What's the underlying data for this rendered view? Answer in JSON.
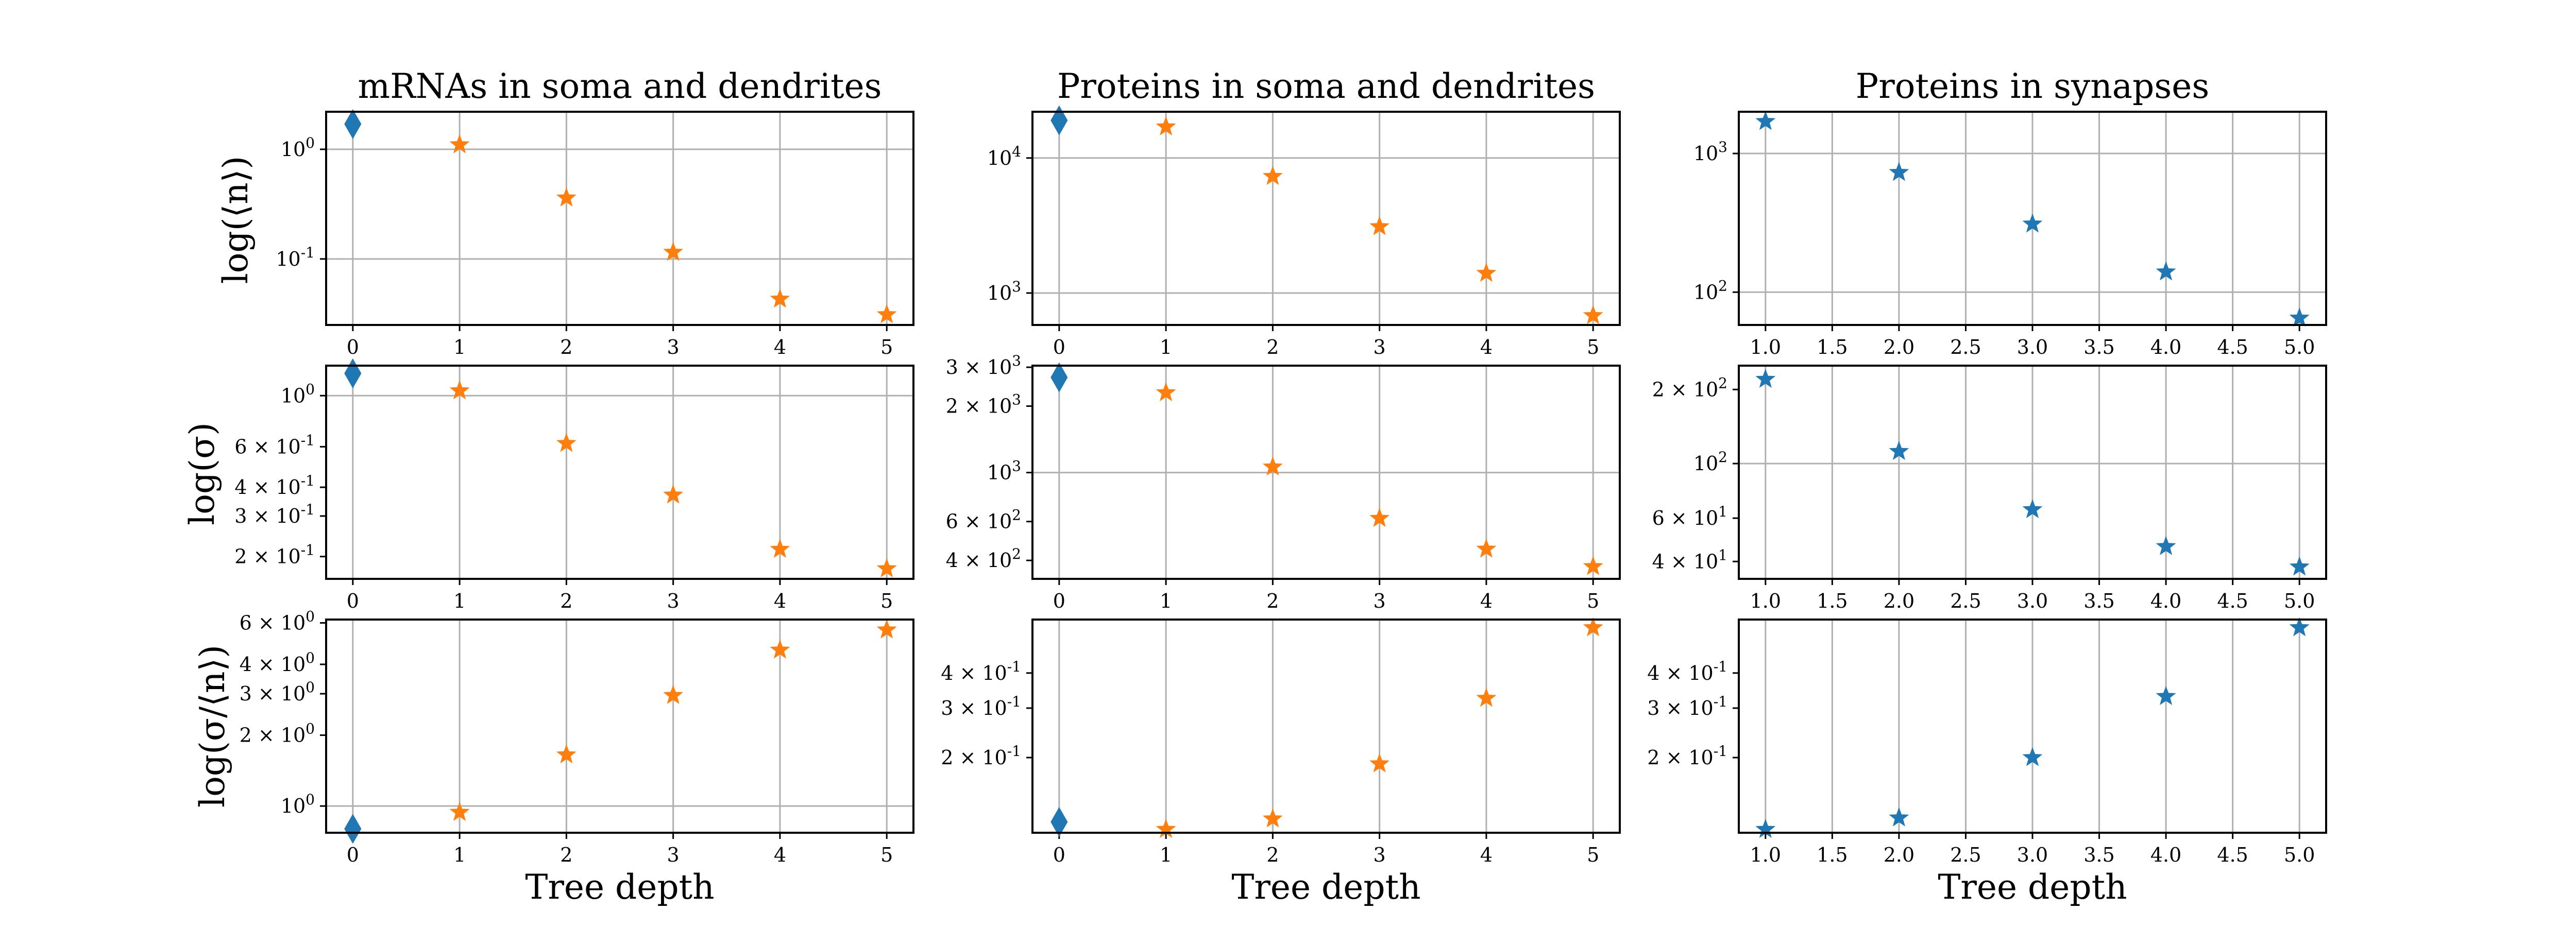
{
  "colors": {
    "blue": "#1f77b4",
    "orange": "#ff7f0e",
    "grid": "#b0b0b0"
  },
  "figure": {
    "column_titles": [
      "mRNAs in soma and dendrites",
      "Proteins in soma and dendrites",
      "Proteins in synapses"
    ],
    "row_labels": [
      "log(⟨n⟩)",
      "log(σ)",
      "log(σ/⟨n⟩)"
    ],
    "x_label": "Tree depth"
  },
  "chart_data": [
    {
      "type": "scatter",
      "row": 0,
      "col": 0,
      "yscale": "log",
      "grid": true,
      "xlim": [
        -0.25,
        5.25
      ],
      "ylim": [
        0.025,
        2.2
      ],
      "xticks": [
        0,
        1,
        2,
        3,
        4,
        5
      ],
      "xtick_labels": [
        "0",
        "1",
        "2",
        "3",
        "4",
        "5"
      ],
      "yticks": [
        1,
        0.1
      ],
      "ytick_labels": [
        "10^0",
        "10^-1"
      ],
      "points": [
        {
          "x": 0,
          "y": 1.7,
          "color": "blue",
          "marker": "diamond"
        },
        {
          "x": 1,
          "y": 1.1,
          "color": "orange",
          "marker": "star"
        },
        {
          "x": 2,
          "y": 0.36,
          "color": "orange",
          "marker": "star"
        },
        {
          "x": 3,
          "y": 0.115,
          "color": "orange",
          "marker": "star"
        },
        {
          "x": 4,
          "y": 0.043,
          "color": "orange",
          "marker": "star"
        },
        {
          "x": 5,
          "y": 0.031,
          "color": "orange",
          "marker": "star"
        }
      ]
    },
    {
      "type": "scatter",
      "row": 0,
      "col": 1,
      "yscale": "log",
      "grid": true,
      "xlim": [
        -0.25,
        5.25
      ],
      "ylim": [
        580,
        22000
      ],
      "xticks": [
        0,
        1,
        2,
        3,
        4,
        5
      ],
      "xtick_labels": [
        "0",
        "1",
        "2",
        "3",
        "4",
        "5"
      ],
      "yticks": [
        10000,
        1000
      ],
      "ytick_labels": [
        "10^4",
        "10^3"
      ],
      "points": [
        {
          "x": 0,
          "y": 19000,
          "color": "blue",
          "marker": "diamond"
        },
        {
          "x": 1,
          "y": 17000,
          "color": "orange",
          "marker": "star"
        },
        {
          "x": 2,
          "y": 7300,
          "color": "orange",
          "marker": "star"
        },
        {
          "x": 3,
          "y": 3100,
          "color": "orange",
          "marker": "star"
        },
        {
          "x": 4,
          "y": 1400,
          "color": "orange",
          "marker": "star"
        },
        {
          "x": 5,
          "y": 680,
          "color": "orange",
          "marker": "star"
        }
      ]
    },
    {
      "type": "scatter",
      "row": 0,
      "col": 2,
      "yscale": "log",
      "grid": true,
      "xlim": [
        0.8,
        5.2
      ],
      "ylim": [
        58,
        2000
      ],
      "xticks": [
        1.0,
        1.5,
        2.0,
        2.5,
        3.0,
        3.5,
        4.0,
        4.5,
        5.0
      ],
      "xtick_labels": [
        "1.0",
        "1.5",
        "2.0",
        "2.5",
        "3.0",
        "3.5",
        "4.0",
        "4.5",
        "5.0"
      ],
      "yticks": [
        1000,
        100
      ],
      "ytick_labels": [
        "10^3",
        "10^2"
      ],
      "points": [
        {
          "x": 1,
          "y": 1700,
          "color": "blue",
          "marker": "star"
        },
        {
          "x": 2,
          "y": 730,
          "color": "blue",
          "marker": "star"
        },
        {
          "x": 3,
          "y": 310,
          "color": "blue",
          "marker": "star"
        },
        {
          "x": 4,
          "y": 140,
          "color": "blue",
          "marker": "star"
        },
        {
          "x": 5,
          "y": 65,
          "color": "blue",
          "marker": "star"
        }
      ]
    },
    {
      "type": "scatter",
      "row": 1,
      "col": 0,
      "yscale": "log",
      "grid": true,
      "xlim": [
        -0.25,
        5.25
      ],
      "ylim": [
        0.16,
        1.35
      ],
      "xticks": [
        0,
        1,
        2,
        3,
        4,
        5
      ],
      "xtick_labels": [
        "0",
        "1",
        "2",
        "3",
        "4",
        "5"
      ],
      "yticks": [
        1,
        0.6,
        0.4,
        0.3,
        0.2
      ],
      "ytick_labels": [
        "10^0",
        "6 × 10^-1",
        "4 × 10^-1",
        "3 × 10^-1",
        "2 × 10^-1"
      ],
      "points": [
        {
          "x": 0,
          "y": 1.25,
          "color": "blue",
          "marker": "diamond"
        },
        {
          "x": 1,
          "y": 1.05,
          "color": "orange",
          "marker": "star"
        },
        {
          "x": 2,
          "y": 0.62,
          "color": "orange",
          "marker": "star"
        },
        {
          "x": 3,
          "y": 0.37,
          "color": "orange",
          "marker": "star"
        },
        {
          "x": 4,
          "y": 0.215,
          "color": "orange",
          "marker": "star"
        },
        {
          "x": 5,
          "y": 0.177,
          "color": "orange",
          "marker": "star"
        }
      ]
    },
    {
      "type": "scatter",
      "row": 1,
      "col": 1,
      "yscale": "log",
      "grid": true,
      "xlim": [
        -0.25,
        5.25
      ],
      "ylim": [
        330,
        3050
      ],
      "xticks": [
        0,
        1,
        2,
        3,
        4,
        5
      ],
      "xtick_labels": [
        "0",
        "1",
        "2",
        "3",
        "4",
        "5"
      ],
      "yticks": [
        3000,
        2000,
        1000,
        600,
        400
      ],
      "ytick_labels": [
        "3 × 10^3",
        "2 × 10^3",
        "10^3",
        "6 × 10^2",
        "4 × 10^2"
      ],
      "points": [
        {
          "x": 0,
          "y": 2700,
          "color": "blue",
          "marker": "diamond"
        },
        {
          "x": 1,
          "y": 2300,
          "color": "orange",
          "marker": "star"
        },
        {
          "x": 2,
          "y": 1060,
          "color": "orange",
          "marker": "star"
        },
        {
          "x": 3,
          "y": 620,
          "color": "orange",
          "marker": "star"
        },
        {
          "x": 4,
          "y": 450,
          "color": "orange",
          "marker": "star"
        },
        {
          "x": 5,
          "y": 375,
          "color": "orange",
          "marker": "star"
        }
      ]
    },
    {
      "type": "scatter",
      "row": 1,
      "col": 2,
      "yscale": "log",
      "grid": true,
      "xlim": [
        0.8,
        5.2
      ],
      "ylim": [
        34,
        250
      ],
      "xticks": [
        1.0,
        1.5,
        2.0,
        2.5,
        3.0,
        3.5,
        4.0,
        4.5,
        5.0
      ],
      "xtick_labels": [
        "1.0",
        "1.5",
        "2.0",
        "2.5",
        "3.0",
        "3.5",
        "4.0",
        "4.5",
        "5.0"
      ],
      "yticks": [
        200,
        100,
        60,
        40
      ],
      "ytick_labels": [
        "2 × 10^2",
        "10^2",
        "6 × 10^1",
        "4 × 10^1"
      ],
      "points": [
        {
          "x": 1,
          "y": 220,
          "color": "blue",
          "marker": "star"
        },
        {
          "x": 2,
          "y": 112,
          "color": "blue",
          "marker": "star"
        },
        {
          "x": 3,
          "y": 65,
          "color": "blue",
          "marker": "star"
        },
        {
          "x": 4,
          "y": 46,
          "color": "blue",
          "marker": "star"
        },
        {
          "x": 5,
          "y": 38,
          "color": "blue",
          "marker": "star"
        }
      ]
    },
    {
      "type": "scatter",
      "row": 2,
      "col": 0,
      "yscale": "log",
      "grid": true,
      "xlim": [
        -0.25,
        5.25
      ],
      "ylim": [
        0.77,
        6.2
      ],
      "xticks": [
        0,
        1,
        2,
        3,
        4,
        5
      ],
      "xtick_labels": [
        "0",
        "1",
        "2",
        "3",
        "4",
        "5"
      ],
      "yticks": [
        6,
        4,
        3,
        2,
        1
      ],
      "ytick_labels": [
        "6 × 10^0",
        "4 × 10^0",
        "3 × 10^0",
        "2 × 10^0",
        "10^0"
      ],
      "points": [
        {
          "x": 0,
          "y": 0.8,
          "color": "blue",
          "marker": "diamond"
        },
        {
          "x": 1,
          "y": 0.94,
          "color": "orange",
          "marker": "star"
        },
        {
          "x": 2,
          "y": 1.65,
          "color": "orange",
          "marker": "star"
        },
        {
          "x": 3,
          "y": 2.95,
          "color": "orange",
          "marker": "star"
        },
        {
          "x": 4,
          "y": 4.6,
          "color": "orange",
          "marker": "star"
        },
        {
          "x": 5,
          "y": 5.6,
          "color": "orange",
          "marker": "star"
        }
      ]
    },
    {
      "type": "scatter",
      "row": 2,
      "col": 1,
      "yscale": "log",
      "grid": true,
      "xlim": [
        -0.25,
        5.25
      ],
      "ylim": [
        0.108,
        0.62
      ],
      "xticks": [
        0,
        1,
        2,
        3,
        4,
        5
      ],
      "xtick_labels": [
        "0",
        "1",
        "2",
        "3",
        "4",
        "5"
      ],
      "yticks": [
        0.4,
        0.3,
        0.2
      ],
      "ytick_labels": [
        "4 × 10^-1",
        "3 × 10^-1",
        "2 × 10^-1"
      ],
      "points": [
        {
          "x": 0,
          "y": 0.118,
          "color": "blue",
          "marker": "diamond"
        },
        {
          "x": 1,
          "y": 0.111,
          "color": "orange",
          "marker": "star"
        },
        {
          "x": 2,
          "y": 0.121,
          "color": "orange",
          "marker": "star"
        },
        {
          "x": 3,
          "y": 0.19,
          "color": "orange",
          "marker": "star"
        },
        {
          "x": 4,
          "y": 0.325,
          "color": "orange",
          "marker": "star"
        },
        {
          "x": 5,
          "y": 0.58,
          "color": "orange",
          "marker": "star"
        }
      ]
    },
    {
      "type": "scatter",
      "row": 2,
      "col": 2,
      "yscale": "log",
      "grid": true,
      "xlim": [
        0.8,
        5.2
      ],
      "ylim": [
        0.108,
        0.62
      ],
      "xticks": [
        1.0,
        1.5,
        2.0,
        2.5,
        3.0,
        3.5,
        4.0,
        4.5,
        5.0
      ],
      "xtick_labels": [
        "1.0",
        "1.5",
        "2.0",
        "2.5",
        "3.0",
        "3.5",
        "4.0",
        "4.5",
        "5.0"
      ],
      "yticks": [
        0.4,
        0.3,
        0.2
      ],
      "ytick_labels": [
        "4 × 10^-1",
        "3 × 10^-1",
        "2 × 10^-1"
      ],
      "points": [
        {
          "x": 1,
          "y": 0.111,
          "color": "blue",
          "marker": "star"
        },
        {
          "x": 2,
          "y": 0.122,
          "color": "blue",
          "marker": "star"
        },
        {
          "x": 3,
          "y": 0.2,
          "color": "blue",
          "marker": "star"
        },
        {
          "x": 4,
          "y": 0.33,
          "color": "blue",
          "marker": "star"
        },
        {
          "x": 5,
          "y": 0.58,
          "color": "blue",
          "marker": "star"
        }
      ]
    }
  ]
}
